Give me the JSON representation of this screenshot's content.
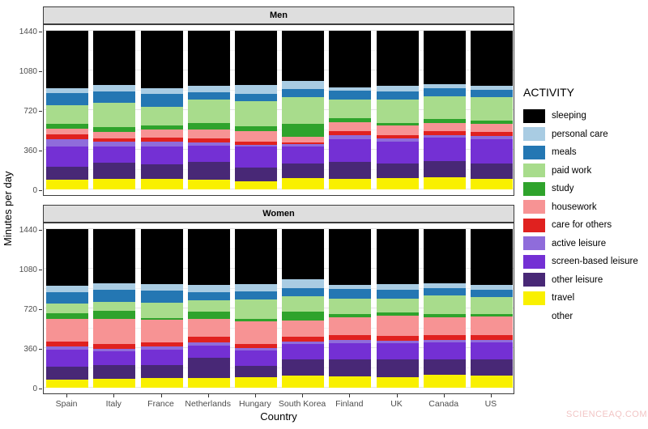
{
  "watermark": "SCIENCEAQ.COM",
  "chart_data": {
    "type": "bar",
    "stacked": true,
    "orientation": "vertical",
    "facets": [
      "Men",
      "Women"
    ],
    "categories": [
      "Spain",
      "Italy",
      "France",
      "Netherlands",
      "Hungary",
      "South Korea",
      "Finland",
      "UK",
      "Canada",
      "US"
    ],
    "xlabel": "Country",
    "ylabel": "Minutes per day",
    "ylim": [
      0,
      1440
    ],
    "yticks": [
      0,
      360,
      720,
      1080,
      1440
    ],
    "yticks_minor": [
      180,
      540,
      900,
      1260
    ],
    "grid": true,
    "legend_title": "ACTIVITY",
    "legend_position": "right",
    "units": "minutes per day",
    "activities": [
      {
        "name": "sleeping",
        "color": "#000000"
      },
      {
        "name": "personal care",
        "color": "#A9CCE3"
      },
      {
        "name": "meals",
        "color": "#2477B3"
      },
      {
        "name": "paid work",
        "color": "#A8DC8C"
      },
      {
        "name": "study",
        "color": "#2FA32C"
      },
      {
        "name": "housework",
        "color": "#F79394"
      },
      {
        "name": "care for others",
        "color": "#E0211F"
      },
      {
        "name": "active leisure",
        "color": "#8F6CDB"
      },
      {
        "name": "screen-based leisure",
        "color": "#7430D4"
      },
      {
        "name": "other leisure",
        "color": "#482876"
      },
      {
        "name": "travel",
        "color": "#F9F000"
      },
      {
        "name": "other",
        "color": "#FFFFFF"
      }
    ],
    "series": {
      "Men": {
        "sleeping": [
          520,
          490,
          520,
          500,
          495,
          454,
          513,
          500,
          485,
          500
        ],
        "personal care": [
          45,
          60,
          55,
          57,
          78,
          74,
          32,
          51,
          37,
          37
        ],
        "meals": [
          108,
          105,
          113,
          68,
          69,
          74,
          81,
          74,
          69,
          62
        ],
        "paid work": [
          174,
          216,
          169,
          213,
          221,
          245,
          169,
          209,
          206,
          216
        ],
        "study": [
          42,
          49,
          37,
          57,
          48,
          115,
          32,
          25,
          39,
          32
        ],
        "housework": [
          54,
          54,
          76,
          79,
          92,
          49,
          86,
          86,
          74,
          71
        ],
        "care for others": [
          40,
          29,
          37,
          37,
          31,
          17,
          37,
          29,
          34,
          39
        ],
        "active leisure": [
          66,
          51,
          42,
          29,
          20,
          20,
          32,
          32,
          25,
          29
        ],
        "screen-based leisure": [
          184,
          142,
          164,
          147,
          184,
          159,
          208,
          201,
          216,
          221
        ],
        "other leisure": [
          118,
          152,
          135,
          167,
          127,
          128,
          152,
          128,
          142,
          135
        ],
        "travel": [
          89,
          92,
          92,
          86,
          75,
          105,
          98,
          105,
          113,
          98
        ],
        "other": [
          0,
          0,
          0,
          0,
          0,
          0,
          0,
          0,
          0,
          0
        ]
      },
      "Women": {
        "sleeping": [
          513,
          495,
          500,
          508,
          500,
          454,
          508,
          500,
          495,
          508
        ],
        "personal care": [
          61,
          59,
          61,
          66,
          68,
          85,
          37,
          54,
          42,
          46
        ],
        "meals": [
          98,
          105,
          110,
          73,
          73,
          73,
          86,
          81,
          68,
          64
        ],
        "paid work": [
          93,
          85,
          134,
          103,
          171,
          139,
          139,
          122,
          169,
          151
        ],
        "study": [
          49,
          69,
          20,
          64,
          24,
          78,
          29,
          32,
          25,
          24
        ],
        "housework": [
          205,
          231,
          200,
          163,
          205,
          147,
          166,
          181,
          161,
          166
        ],
        "care for others": [
          48,
          42,
          37,
          49,
          39,
          44,
          42,
          44,
          46,
          49
        ],
        "active leisure": [
          25,
          24,
          32,
          32,
          25,
          24,
          32,
          20,
          20,
          17
        ],
        "screen-based leisure": [
          154,
          127,
          139,
          108,
          139,
          142,
          142,
          151,
          154,
          158
        ],
        "other leisure": [
          122,
          122,
          122,
          185,
          98,
          146,
          158,
          159,
          146,
          146
        ],
        "travel": [
          72,
          81,
          85,
          89,
          98,
          108,
          101,
          96,
          114,
          111
        ],
        "other": [
          0,
          0,
          0,
          0,
          0,
          0,
          0,
          0,
          0,
          0
        ]
      }
    }
  }
}
